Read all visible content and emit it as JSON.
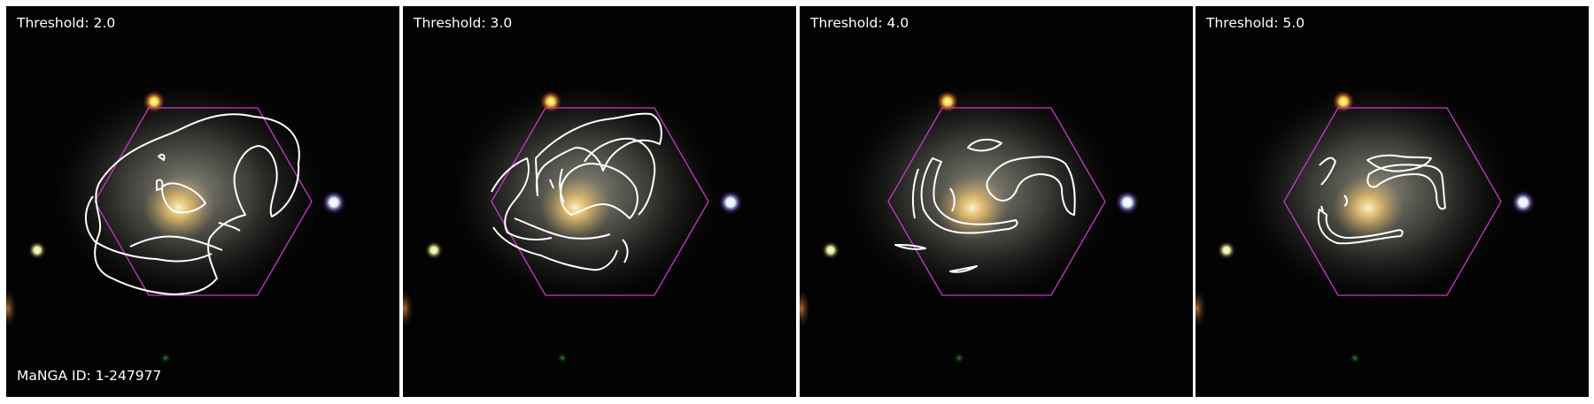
{
  "panels": [
    {
      "title": "Threshold: 2.0"
    },
    {
      "title": "Threshold: 3.0"
    },
    {
      "title": "Threshold: 4.0"
    },
    {
      "title": "Threshold: 5.0"
    }
  ],
  "galaxy_id": "MaNGA ID: 1-247977",
  "colors": {
    "background": "#030303",
    "hexagon": "#c838c8",
    "contour": "#ffffff",
    "galaxy_core": "#e8c27a",
    "galaxy_disk": "#8f8f86"
  }
}
